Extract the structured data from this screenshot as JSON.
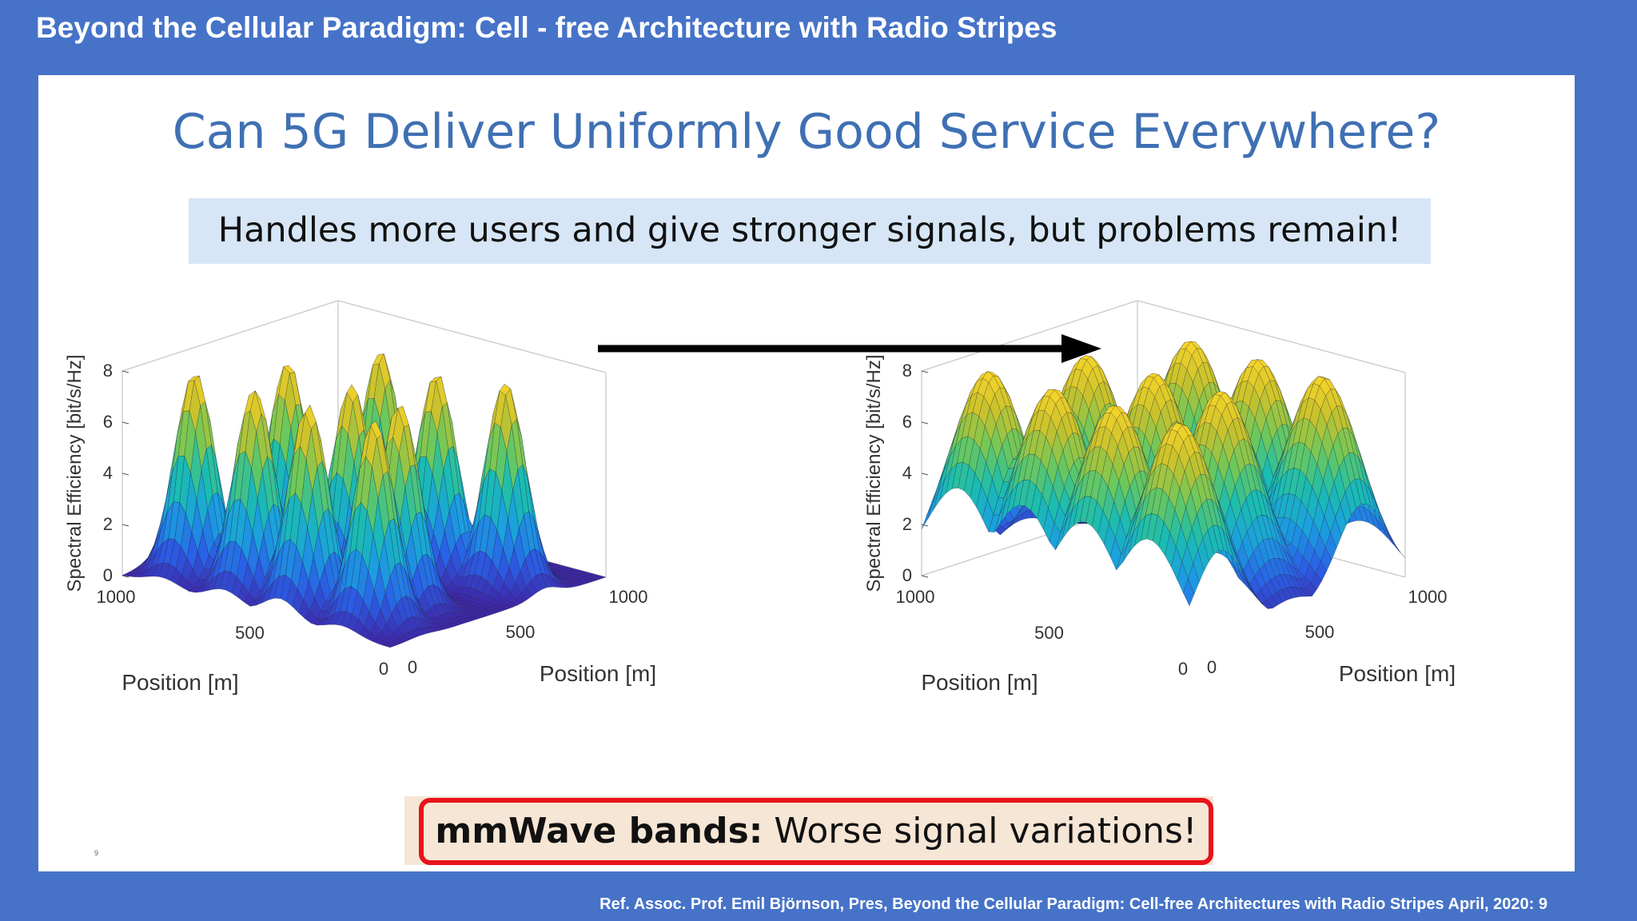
{
  "header": {
    "title": "Beyond the Cellular Paradigm: Cell - free Architecture with Radio Stripes"
  },
  "slide": {
    "title": "Can 5G Deliver Uniformly Good Service Everywhere?",
    "subtitle": "Handles more users and give stronger signals, but problems remain!",
    "callout_bold": "mmWave bands:",
    "callout_rest": " Worse signal variations!",
    "slide_mark": "9"
  },
  "footer": {
    "reference": "Ref. Assoc. Prof. Emil Björnson, Pres, Beyond the Cellular Paradigm: Cell-free Architectures with Radio Stripes April, 2020: 9"
  },
  "colors": {
    "background": "#4673c8",
    "title_blue": "#3f70b3",
    "callout_border": "#e8131a",
    "colormap": [
      "#3e26a8",
      "#2a5fe6",
      "#1b9fe0",
      "#1bbdb0",
      "#6cc85b",
      "#c8c12c",
      "#f9d628"
    ]
  },
  "chart_data": [
    {
      "type": "surface",
      "ylabel": "Spectral Efficiency [bit/s/Hz]",
      "xlabel": "Position [m]",
      "zlabel_depth": "Position [m]",
      "z_ticks": [
        "0",
        "2",
        "4",
        "6",
        "8"
      ],
      "x_ticks": [
        "1000",
        "500",
        "0"
      ],
      "y_ticks": [
        "0",
        "500",
        "1000"
      ],
      "zlim": [
        0,
        8
      ],
      "xlim": [
        0,
        1000
      ],
      "ylim": [
        0,
        1000
      ],
      "peak_value": 8,
      "peak_width_m": 60,
      "peaks": [
        {
          "x": 850,
          "y": 150
        },
        {
          "x": 620,
          "y": 140
        },
        {
          "x": 410,
          "y": 130
        },
        {
          "x": 180,
          "y": 150
        },
        {
          "x": 720,
          "y": 420
        },
        {
          "x": 450,
          "y": 380
        },
        {
          "x": 230,
          "y": 330
        },
        {
          "x": 600,
          "y": 700
        },
        {
          "x": 350,
          "y": 650
        },
        {
          "x": 150,
          "y": 720
        }
      ]
    },
    {
      "type": "surface",
      "ylabel": "Spectral Efficiency [bit/s/Hz]",
      "xlabel": "Position [m]",
      "zlabel_depth": "Position [m]",
      "z_ticks": [
        "0",
        "2",
        "4",
        "6",
        "8"
      ],
      "x_ticks": [
        "1000",
        "500",
        "0"
      ],
      "y_ticks": [
        "0",
        "500",
        "1000"
      ],
      "zlim": [
        0,
        8
      ],
      "xlim": [
        0,
        1000
      ],
      "ylim": [
        0,
        1000
      ],
      "peak_value": 8,
      "peak_width_m": 115,
      "peaks": [
        {
          "x": 860,
          "y": 140
        },
        {
          "x": 620,
          "y": 140
        },
        {
          "x": 390,
          "y": 140
        },
        {
          "x": 150,
          "y": 140
        },
        {
          "x": 760,
          "y": 470
        },
        {
          "x": 510,
          "y": 470
        },
        {
          "x": 260,
          "y": 470
        },
        {
          "x": 640,
          "y": 800
        },
        {
          "x": 390,
          "y": 800
        },
        {
          "x": 150,
          "y": 800
        }
      ]
    }
  ]
}
